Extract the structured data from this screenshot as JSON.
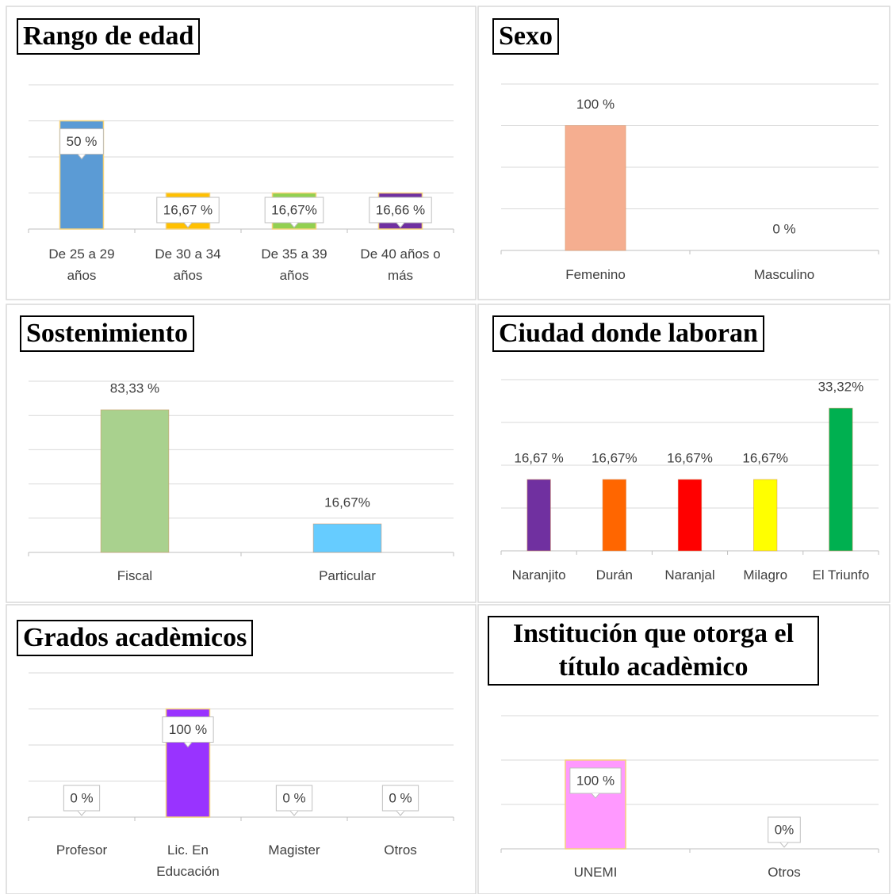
{
  "chart_data": [
    {
      "type": "bar",
      "title": "Rango de edad",
      "categories": [
        "De 25 a 29 años",
        "De 30 a 34 años",
        "De 35 a 39 años",
        "De 40 años o más"
      ],
      "values": [
        50,
        16.67,
        16.67,
        16.66
      ],
      "value_labels": [
        "50 %",
        "16,67 %",
        "16,67%",
        "16,66 %"
      ],
      "colors": [
        "#5b9bd5",
        "#ffc000",
        "#92d050",
        "#7030a0"
      ],
      "ylim": [
        0,
        66.67
      ],
      "yticks": [
        0,
        16.67,
        33.33,
        50,
        66.67
      ],
      "grid": true,
      "callout_labels": true
    },
    {
      "type": "bar",
      "title": "Sexo",
      "categories": [
        "Femenino",
        "Masculino"
      ],
      "values": [
        100,
        0
      ],
      "value_labels": [
        "100 %",
        "0 %"
      ],
      "colors": [
        "#f5ae90",
        "#f5ae90"
      ],
      "ylim": [
        0,
        133.33
      ],
      "yticks": [
        0,
        33.33,
        66.67,
        100,
        133.33
      ],
      "grid": true,
      "callout_labels": false
    },
    {
      "type": "bar",
      "title": "Sostenimiento",
      "categories": [
        "Fiscal",
        "Particular"
      ],
      "values": [
        83.33,
        16.67
      ],
      "value_labels": [
        "83,33 %",
        "16,67%"
      ],
      "colors": [
        "#a9d18e",
        "#66ccff"
      ],
      "ylim": [
        0,
        100
      ],
      "yticks": [
        0,
        20,
        40,
        60,
        80,
        100
      ],
      "grid": true,
      "callout_labels": false
    },
    {
      "type": "bar",
      "title": "Ciudad donde laboran",
      "categories": [
        "Naranjito",
        "Durán",
        "Naranjal",
        "Milagro",
        "El Triunfo"
      ],
      "values": [
        16.67,
        16.67,
        16.67,
        16.67,
        33.32
      ],
      "value_labels": [
        "16,67 %",
        "16,67%",
        "16,67%",
        "16,67%",
        "33,32%"
      ],
      "colors": [
        "#7030a0",
        "#ff6600",
        "#ff0000",
        "#ffff00",
        "#00b050"
      ],
      "ylim": [
        0,
        40
      ],
      "yticks": [
        0,
        10,
        20,
        30,
        40
      ],
      "grid": true,
      "callout_labels": false
    },
    {
      "type": "bar",
      "title": "Grados acadèmicos",
      "categories": [
        "Profesor",
        "Lic. En Educación",
        "Magister",
        "Otros"
      ],
      "values": [
        0,
        100,
        0,
        0
      ],
      "value_labels": [
        "0 %",
        "100 %",
        "0 %",
        "0 %"
      ],
      "colors": [
        "#9933ff",
        "#9933ff",
        "#9933ff",
        "#9933ff"
      ],
      "ylim": [
        0,
        133.33
      ],
      "yticks": [
        0,
        33.33,
        66.67,
        100,
        133.33
      ],
      "grid": true,
      "callout_labels": true
    },
    {
      "type": "bar",
      "title": "Institución que otorga el título acadèmico",
      "categories": [
        "UNEMI",
        "Otros"
      ],
      "values": [
        100,
        0
      ],
      "value_labels": [
        "100 %",
        "0%"
      ],
      "colors": [
        "#ff99ff",
        "#ff99ff"
      ],
      "ylim": [
        0,
        150
      ],
      "yticks": [
        0,
        50,
        100,
        150
      ],
      "grid": true,
      "callout_labels": true
    }
  ]
}
